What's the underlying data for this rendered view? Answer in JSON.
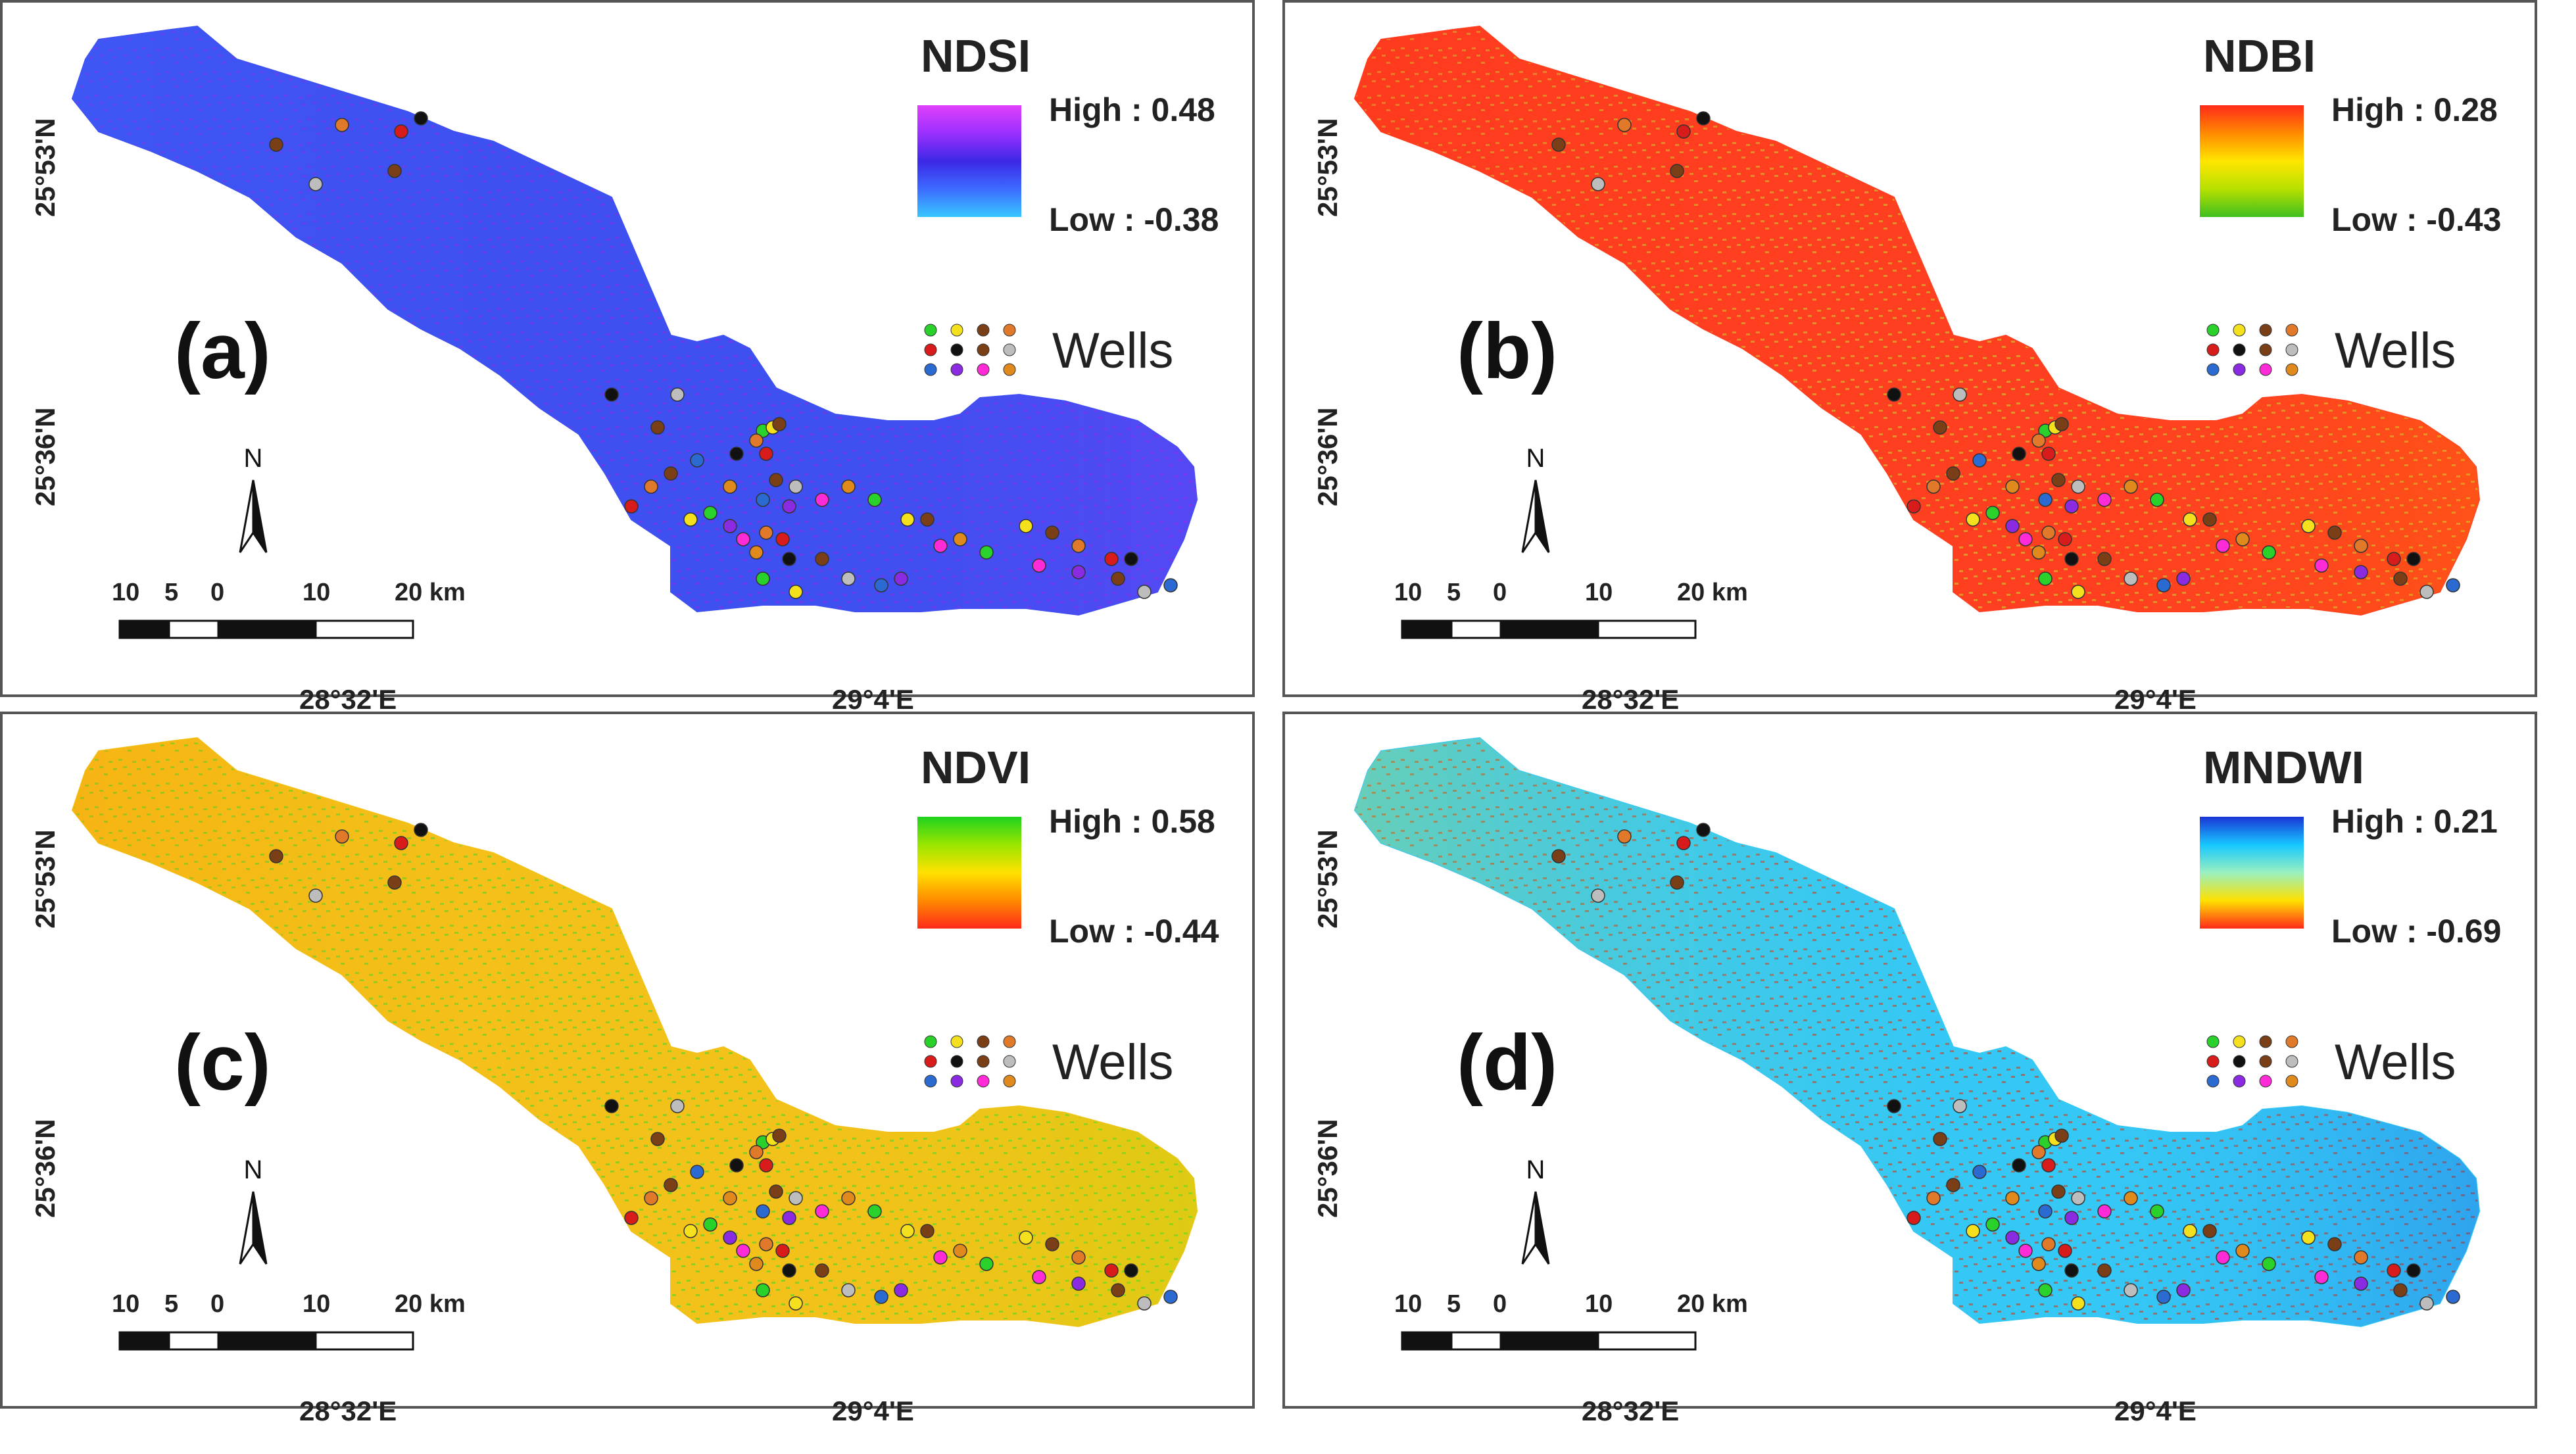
{
  "figure": {
    "panels": [
      {
        "id": "a",
        "index_name": "NDSI",
        "letter": "(a)",
        "high_label": "High : 0.48",
        "low_label": "Low : -0.38",
        "high_value": 0.48,
        "low_value": -0.38,
        "ramp_colors": [
          "#e040fb",
          "#9b30ff",
          "#3c28e6",
          "#3d6bff",
          "#38c8ff"
        ],
        "base_color": "#3e50f0",
        "accent_color": "#8a2be2",
        "legend_label": "Wells"
      },
      {
        "id": "b",
        "index_name": "NDBI",
        "letter": "(b)",
        "high_label": "High : 0.28",
        "low_label": "Low : -0.43",
        "high_value": 0.28,
        "low_value": -0.43,
        "ramp_colors": [
          "#ff2a1a",
          "#ff8a00",
          "#ffe600",
          "#b6e000",
          "#3fbf1f"
        ],
        "base_color": "#ff4020",
        "accent_color": "#c8d030",
        "legend_label": "Wells"
      },
      {
        "id": "c",
        "index_name": "NDVI",
        "letter": "(c)",
        "high_label": "High : 0.58",
        "low_label": "Low : -0.44",
        "high_value": 0.58,
        "low_value": -0.44,
        "ramp_colors": [
          "#1fd21f",
          "#9ae600",
          "#ffe100",
          "#ff8a00",
          "#ff2a1a"
        ],
        "base_color": "#f3c21a",
        "accent_color": "#46d82a",
        "legend_label": "Wells"
      },
      {
        "id": "d",
        "index_name": "MNDWI",
        "letter": "(d)",
        "high_label": "High : 0.21",
        "low_label": "Low : -0.69",
        "high_value": 0.21,
        "low_value": -0.69,
        "ramp_colors": [
          "#1a35d6",
          "#17c7ff",
          "#9af0c0",
          "#ffe100",
          "#ff2a1a"
        ],
        "base_color": "#35c8f5",
        "accent_color": "#c8401a",
        "legend_label": "Wells"
      }
    ],
    "scale_labels": [
      "10",
      "5",
      "0",
      "10",
      "20 km"
    ],
    "north_label": "N",
    "lat_labels": [
      "25°53'N",
      "25°36'N"
    ],
    "lon_labels": [
      "28°32'E",
      "29°4'E"
    ],
    "well_colors": [
      "#2ad12a",
      "#f4e01c",
      "#7a3f16",
      "#e07a2a",
      "#d81b1b",
      "#111111",
      "#7a3f16",
      "#bdbdbd",
      "#2a6ad1",
      "#8a2be2",
      "#ff2bd6",
      "#e08a1e"
    ]
  }
}
